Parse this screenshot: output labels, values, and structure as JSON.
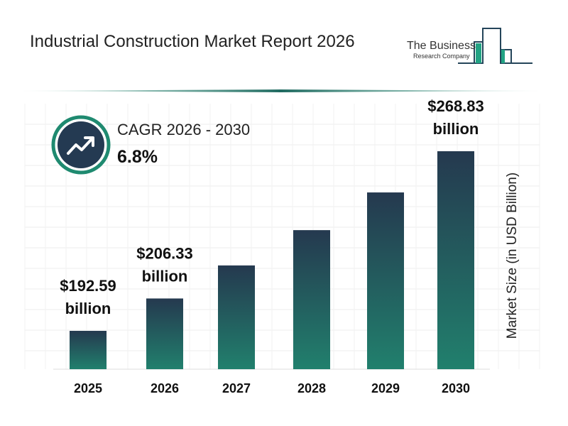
{
  "header": {
    "title": "Industrial Construction Market Report 2026"
  },
  "logo": {
    "line1": "The Business",
    "line2": "Research Company"
  },
  "cagr": {
    "label": "CAGR 2026 - 2030",
    "value": "6.8%",
    "icon": "trending-up-icon"
  },
  "colors": {
    "bar_top": "#25394f",
    "bar_bottom": "#21806d",
    "accent": "#1f8a70",
    "dark": "#243a52"
  },
  "chart_data": {
    "type": "bar",
    "title": "Industrial Construction Market Report 2026",
    "ylabel": "Market Size (in USD Billion)",
    "categories": [
      "2025",
      "2026",
      "2027",
      "2028",
      "2029",
      "2030"
    ],
    "values": [
      192.59,
      206.33,
      220.36,
      235.34,
      251.34,
      268.83
    ],
    "data_labels": [
      {
        "index": 0,
        "line1": "$192.59",
        "line2": "billion"
      },
      {
        "index": 1,
        "line1": "$206.33",
        "line2": "billion"
      },
      {
        "index": 5,
        "line1": "$268.83",
        "line2": "billion"
      }
    ],
    "grid": true,
    "legend": "none"
  }
}
